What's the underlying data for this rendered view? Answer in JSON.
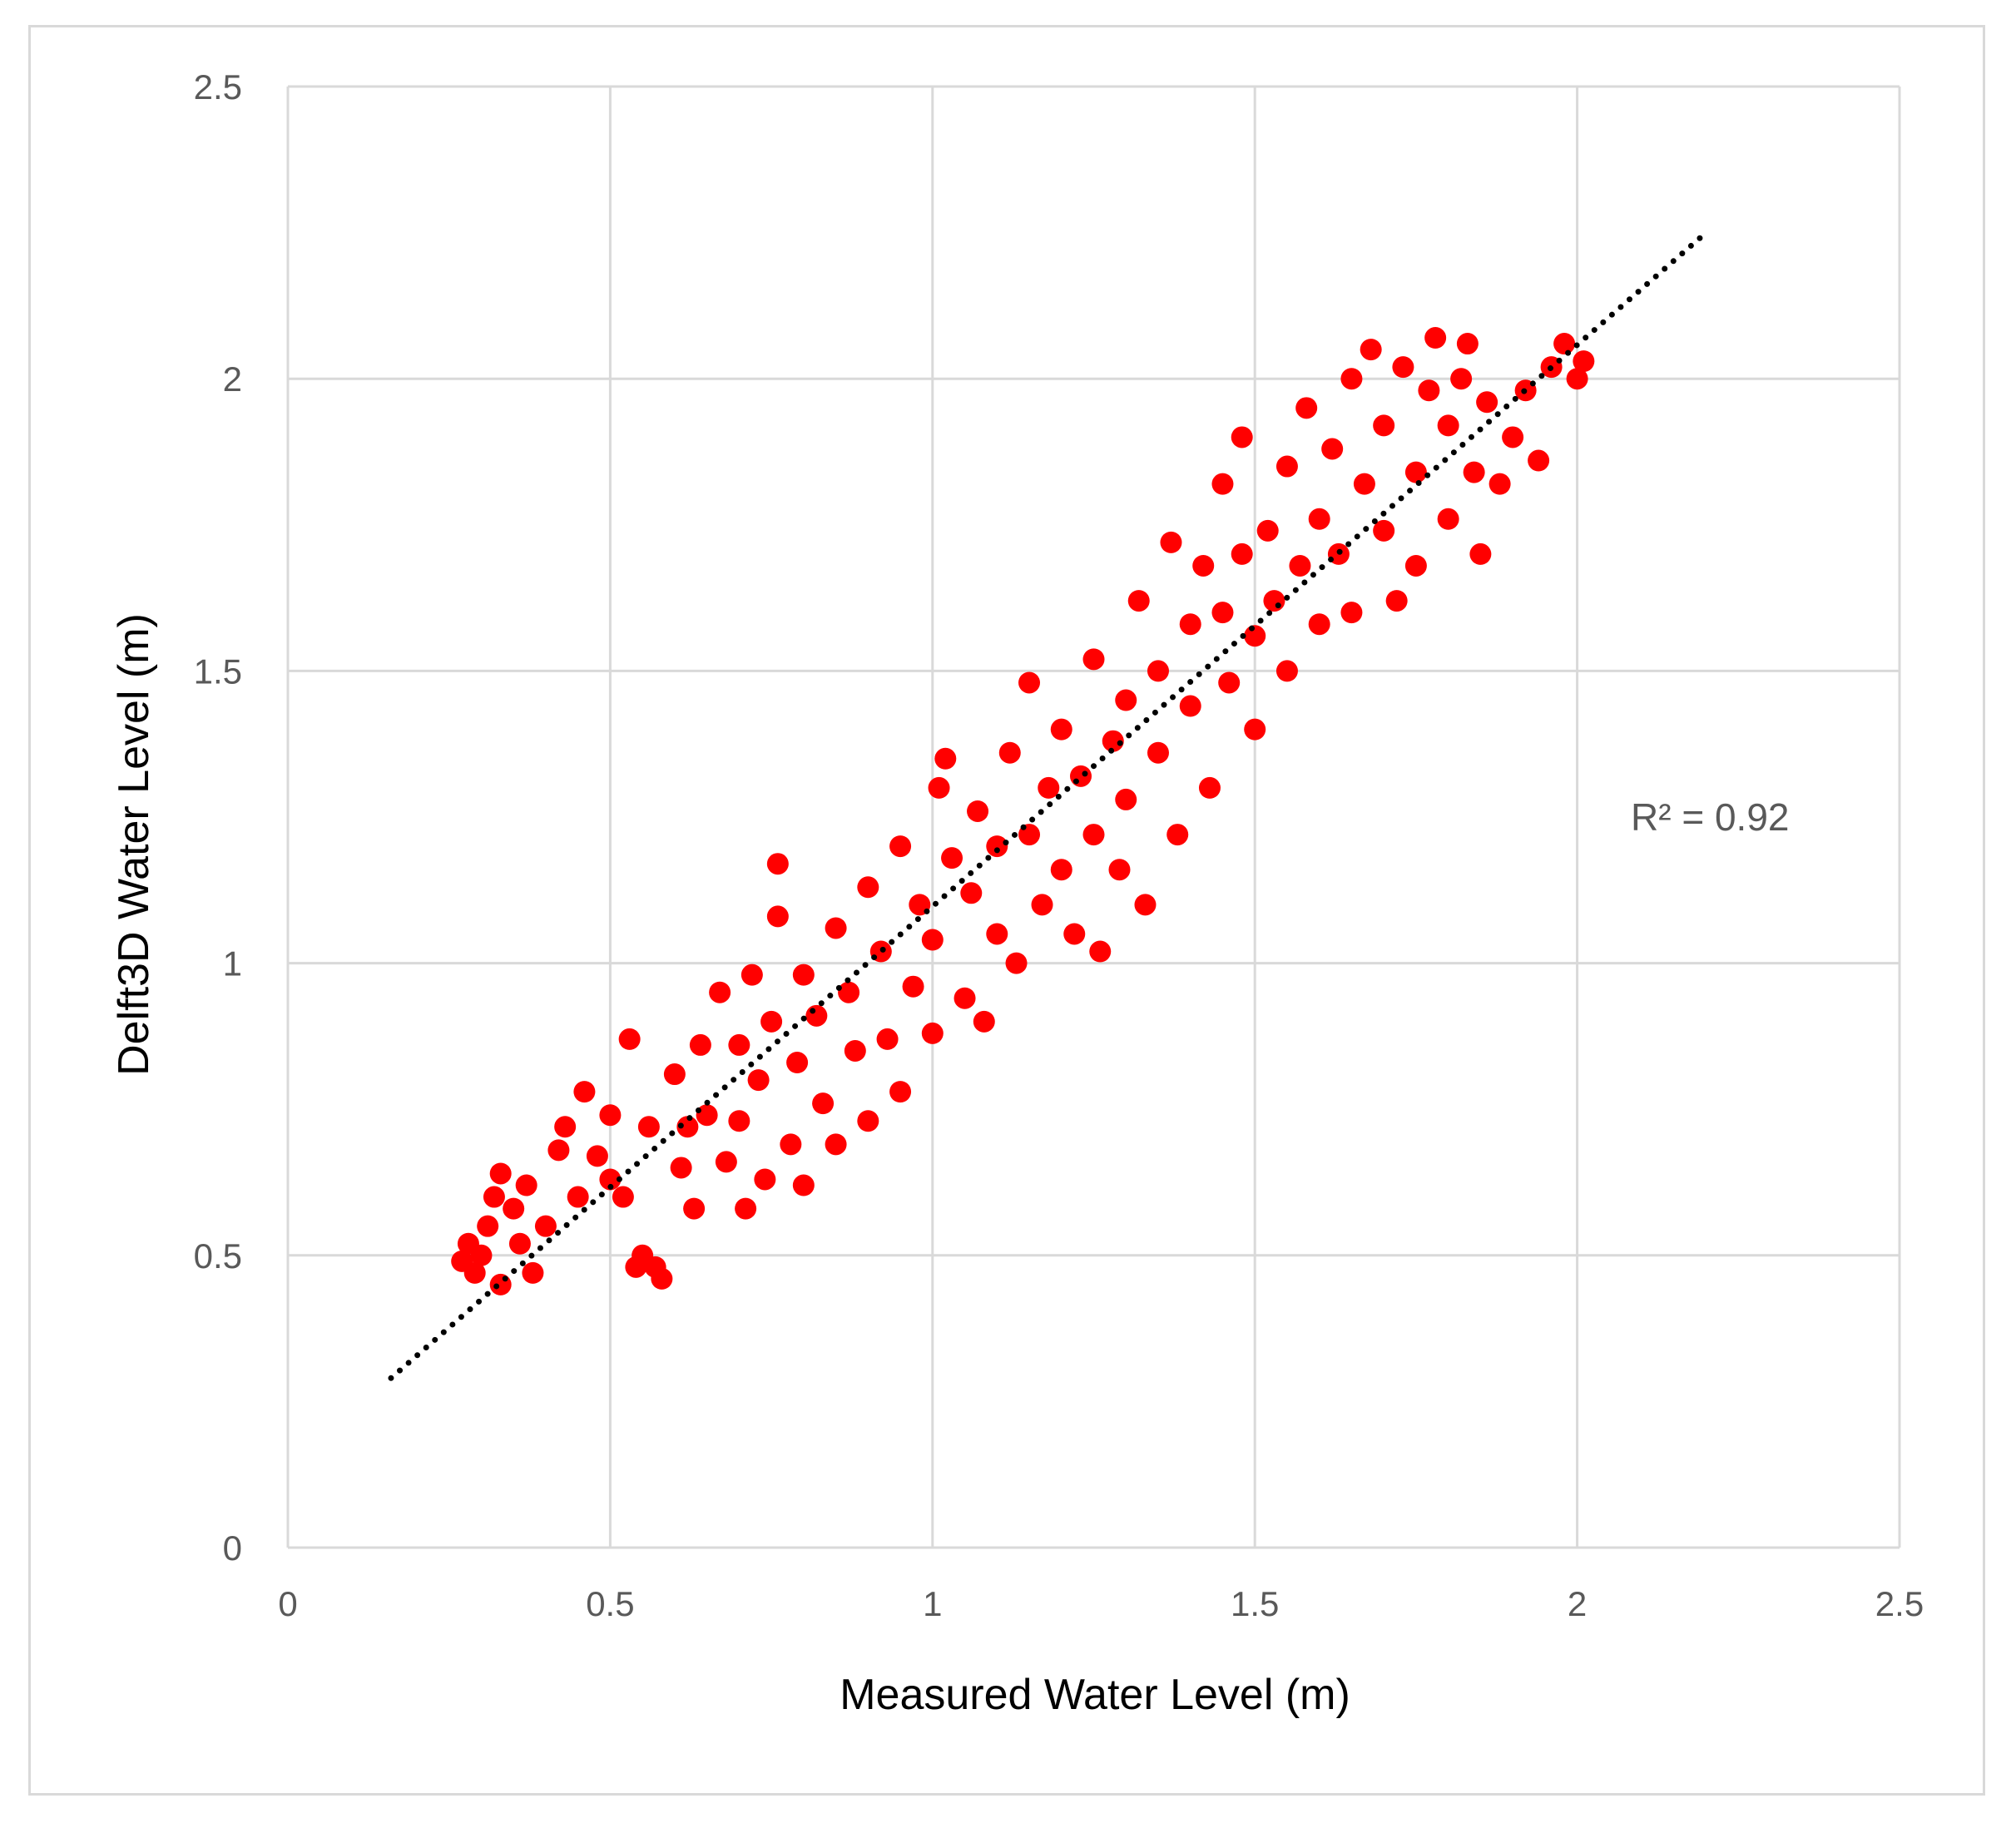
{
  "chart_data": {
    "type": "scatter",
    "xlabel": "Measured Water Level (m)",
    "ylabel": "Delft3D Water Level (m)",
    "xlim": [
      0,
      2.5
    ],
    "ylim": [
      0,
      2.5
    ],
    "x_ticks": [
      "0",
      "0.5",
      "1",
      "1.5",
      "2",
      "2.5"
    ],
    "y_ticks": [
      "0",
      "0.5",
      "1",
      "1.5",
      "2",
      "2.5"
    ],
    "grid": true,
    "marker_color": "#ff0000",
    "trendline": {
      "style": "dotted",
      "color": "#000000",
      "x": [
        0.16,
        2.2
      ],
      "y": [
        0.29,
        2.25
      ]
    },
    "annotation": "R² = 0.92",
    "series": [
      {
        "points": [
          [
            0.27,
            0.49
          ],
          [
            0.28,
            0.52
          ],
          [
            0.29,
            0.47
          ],
          [
            0.3,
            0.5
          ],
          [
            0.31,
            0.55
          ],
          [
            0.32,
            0.6
          ],
          [
            0.33,
            0.64
          ],
          [
            0.33,
            0.45
          ],
          [
            0.35,
            0.58
          ],
          [
            0.36,
            0.52
          ],
          [
            0.37,
            0.62
          ],
          [
            0.38,
            0.47
          ],
          [
            0.4,
            0.55
          ],
          [
            0.42,
            0.68
          ],
          [
            0.43,
            0.72
          ],
          [
            0.45,
            0.6
          ],
          [
            0.46,
            0.78
          ],
          [
            0.48,
            0.67
          ],
          [
            0.5,
            0.63
          ],
          [
            0.5,
            0.74
          ],
          [
            0.52,
            0.6
          ],
          [
            0.53,
            0.87
          ],
          [
            0.54,
            0.48
          ],
          [
            0.55,
            0.5
          ],
          [
            0.56,
            0.72
          ],
          [
            0.57,
            0.48
          ],
          [
            0.58,
            0.46
          ],
          [
            0.6,
            0.81
          ],
          [
            0.61,
            0.65
          ],
          [
            0.62,
            0.72
          ],
          [
            0.63,
            0.58
          ],
          [
            0.64,
            0.86
          ],
          [
            0.65,
            0.74
          ],
          [
            0.67,
            0.95
          ],
          [
            0.68,
            0.66
          ],
          [
            0.7,
            0.73
          ],
          [
            0.7,
            0.86
          ],
          [
            0.71,
            0.58
          ],
          [
            0.72,
            0.98
          ],
          [
            0.73,
            0.8
          ],
          [
            0.74,
            0.63
          ],
          [
            0.75,
            0.9
          ],
          [
            0.76,
            1.08
          ],
          [
            0.76,
            1.17
          ],
          [
            0.78,
            0.69
          ],
          [
            0.79,
            0.83
          ],
          [
            0.8,
            0.98
          ],
          [
            0.8,
            0.62
          ],
          [
            0.82,
            0.91
          ],
          [
            0.83,
            0.76
          ],
          [
            0.85,
            1.06
          ],
          [
            0.85,
            0.69
          ],
          [
            0.87,
            0.95
          ],
          [
            0.88,
            0.85
          ],
          [
            0.9,
            1.13
          ],
          [
            0.9,
            0.73
          ],
          [
            0.92,
            1.02
          ],
          [
            0.93,
            0.87
          ],
          [
            0.95,
            1.2
          ],
          [
            0.95,
            0.78
          ],
          [
            0.97,
            0.96
          ],
          [
            0.98,
            1.1
          ],
          [
            1.0,
            1.04
          ],
          [
            1.0,
            0.88
          ],
          [
            1.01,
            1.3
          ],
          [
            1.02,
            1.35
          ],
          [
            1.03,
            1.18
          ],
          [
            1.05,
            0.94
          ],
          [
            1.06,
            1.12
          ],
          [
            1.07,
            1.26
          ],
          [
            1.08,
            0.9
          ],
          [
            1.1,
            1.2
          ],
          [
            1.1,
            1.05
          ],
          [
            1.12,
            1.36
          ],
          [
            1.13,
            1.0
          ],
          [
            1.15,
            1.22
          ],
          [
            1.15,
            1.48
          ],
          [
            1.17,
            1.1
          ],
          [
            1.18,
            1.3
          ],
          [
            1.2,
            1.16
          ],
          [
            1.2,
            1.4
          ],
          [
            1.22,
            1.05
          ],
          [
            1.23,
            1.32
          ],
          [
            1.25,
            1.52
          ],
          [
            1.25,
            1.22
          ],
          [
            1.26,
            1.02
          ],
          [
            1.28,
            1.38
          ],
          [
            1.29,
            1.16
          ],
          [
            1.3,
            1.45
          ],
          [
            1.3,
            1.28
          ],
          [
            1.32,
            1.62
          ],
          [
            1.33,
            1.1
          ],
          [
            1.35,
            1.5
          ],
          [
            1.35,
            1.36
          ],
          [
            1.37,
            1.72
          ],
          [
            1.38,
            1.22
          ],
          [
            1.4,
            1.58
          ],
          [
            1.4,
            1.44
          ],
          [
            1.42,
            1.68
          ],
          [
            1.43,
            1.3
          ],
          [
            1.45,
            1.6
          ],
          [
            1.45,
            1.82
          ],
          [
            1.46,
            1.48
          ],
          [
            1.48,
            1.7
          ],
          [
            1.48,
            1.9
          ],
          [
            1.5,
            1.56
          ],
          [
            1.5,
            1.4
          ],
          [
            1.52,
            1.74
          ],
          [
            1.53,
            1.62
          ],
          [
            1.55,
            1.85
          ],
          [
            1.55,
            1.5
          ],
          [
            1.57,
            1.68
          ],
          [
            1.58,
            1.95
          ],
          [
            1.6,
            1.76
          ],
          [
            1.6,
            1.58
          ],
          [
            1.62,
            1.88
          ],
          [
            1.63,
            1.7
          ],
          [
            1.65,
            2.0
          ],
          [
            1.65,
            1.6
          ],
          [
            1.67,
            1.82
          ],
          [
            1.68,
            2.05
          ],
          [
            1.7,
            1.74
          ],
          [
            1.7,
            1.92
          ],
          [
            1.72,
            1.62
          ],
          [
            1.73,
            2.02
          ],
          [
            1.75,
            1.84
          ],
          [
            1.75,
            1.68
          ],
          [
            1.77,
            1.98
          ],
          [
            1.78,
            2.07
          ],
          [
            1.8,
            1.76
          ],
          [
            1.8,
            1.92
          ],
          [
            1.82,
            2.0
          ],
          [
            1.83,
            2.06
          ],
          [
            1.84,
            1.84
          ],
          [
            1.85,
            1.7
          ],
          [
            1.86,
            1.96
          ],
          [
            1.88,
            1.82
          ],
          [
            1.9,
            1.9
          ],
          [
            1.92,
            1.98
          ],
          [
            1.94,
            1.86
          ],
          [
            1.96,
            2.02
          ],
          [
            1.98,
            2.06
          ],
          [
            2.0,
            2.0
          ],
          [
            2.01,
            2.03
          ]
        ]
      }
    ]
  }
}
